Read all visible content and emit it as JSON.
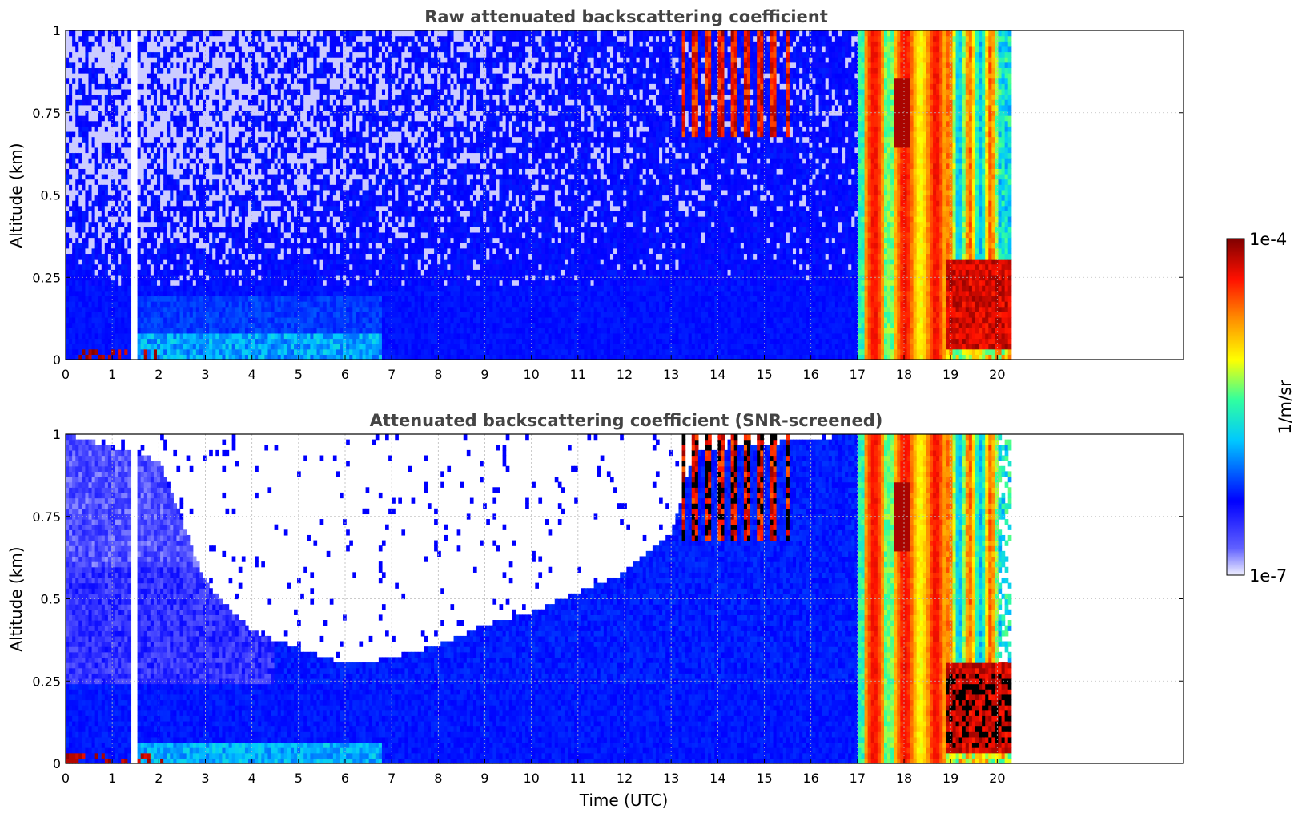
{
  "chart_data": [
    {
      "type": "heatmap",
      "title": "Raw attenuated backscattering coefficient",
      "xlabel": "",
      "ylabel": "Altitude (km)",
      "xlim": [
        0,
        24
      ],
      "ylim": [
        0,
        1
      ],
      "xticks": [
        "0",
        "1",
        "2",
        "3",
        "4",
        "5",
        "6",
        "7",
        "8",
        "9",
        "10",
        "11",
        "12",
        "13",
        "14",
        "15",
        "16",
        "17",
        "18",
        "19",
        "20"
      ],
      "yticks": [
        "0",
        "0.25",
        "0.5",
        "0.75",
        "1"
      ],
      "grid": true,
      "data_end_time": 20.3,
      "gap_time": 1.47,
      "features": [
        {
          "x0": 0,
          "x1": 17,
          "y0": 0.0,
          "y1": 0.25,
          "level": "low-mid"
        },
        {
          "x0": 0,
          "x1": 17,
          "y0": 0.25,
          "y1": 1.0,
          "level": "noisy-low"
        },
        {
          "x0": 13.2,
          "x1": 15.6,
          "y0": 0.7,
          "y1": 1.0,
          "level": "high-streaks"
        },
        {
          "x0": 17.0,
          "x1": 18.9,
          "y0": 0.0,
          "y1": 1.0,
          "level": "high"
        },
        {
          "x0": 18.5,
          "x1": 20.3,
          "y0": 0.0,
          "y1": 0.3,
          "level": "very-high"
        }
      ]
    },
    {
      "type": "heatmap",
      "title": "Attenuated backscattering coefficient (SNR-screened)",
      "xlabel": "Time (UTC)",
      "ylabel": "Altitude (km)",
      "xlim": [
        0,
        24
      ],
      "ylim": [
        0,
        1
      ],
      "xticks": [
        "0",
        "1",
        "2",
        "3",
        "4",
        "5",
        "6",
        "7",
        "8",
        "9",
        "10",
        "11",
        "12",
        "13",
        "14",
        "15",
        "16",
        "17",
        "18",
        "19",
        "20"
      ],
      "yticks": [
        "0",
        "0.25",
        "0.5",
        "0.75",
        "1"
      ],
      "grid": true,
      "data_end_time": 20.3,
      "gap_time": 1.47,
      "screen_boundary": [
        [
          0,
          1.0
        ],
        [
          2,
          0.92
        ],
        [
          3,
          0.55
        ],
        [
          4,
          0.4
        ],
        [
          5,
          0.35
        ],
        [
          6,
          0.3
        ],
        [
          7,
          0.32
        ],
        [
          8,
          0.36
        ],
        [
          9,
          0.42
        ],
        [
          10,
          0.46
        ],
        [
          11,
          0.52
        ],
        [
          12,
          0.58
        ],
        [
          13,
          0.7
        ],
        [
          13.5,
          0.95
        ],
        [
          17,
          1.0
        ]
      ]
    }
  ],
  "colorbar": {
    "label": "1/m/sr",
    "max_label": "1e-4",
    "min_label": "1e-7",
    "scale": "log",
    "colormap": [
      "#f0f0ff",
      "#0000ff",
      "#00ffff",
      "#ffff00",
      "#ff0000",
      "#800000"
    ]
  }
}
